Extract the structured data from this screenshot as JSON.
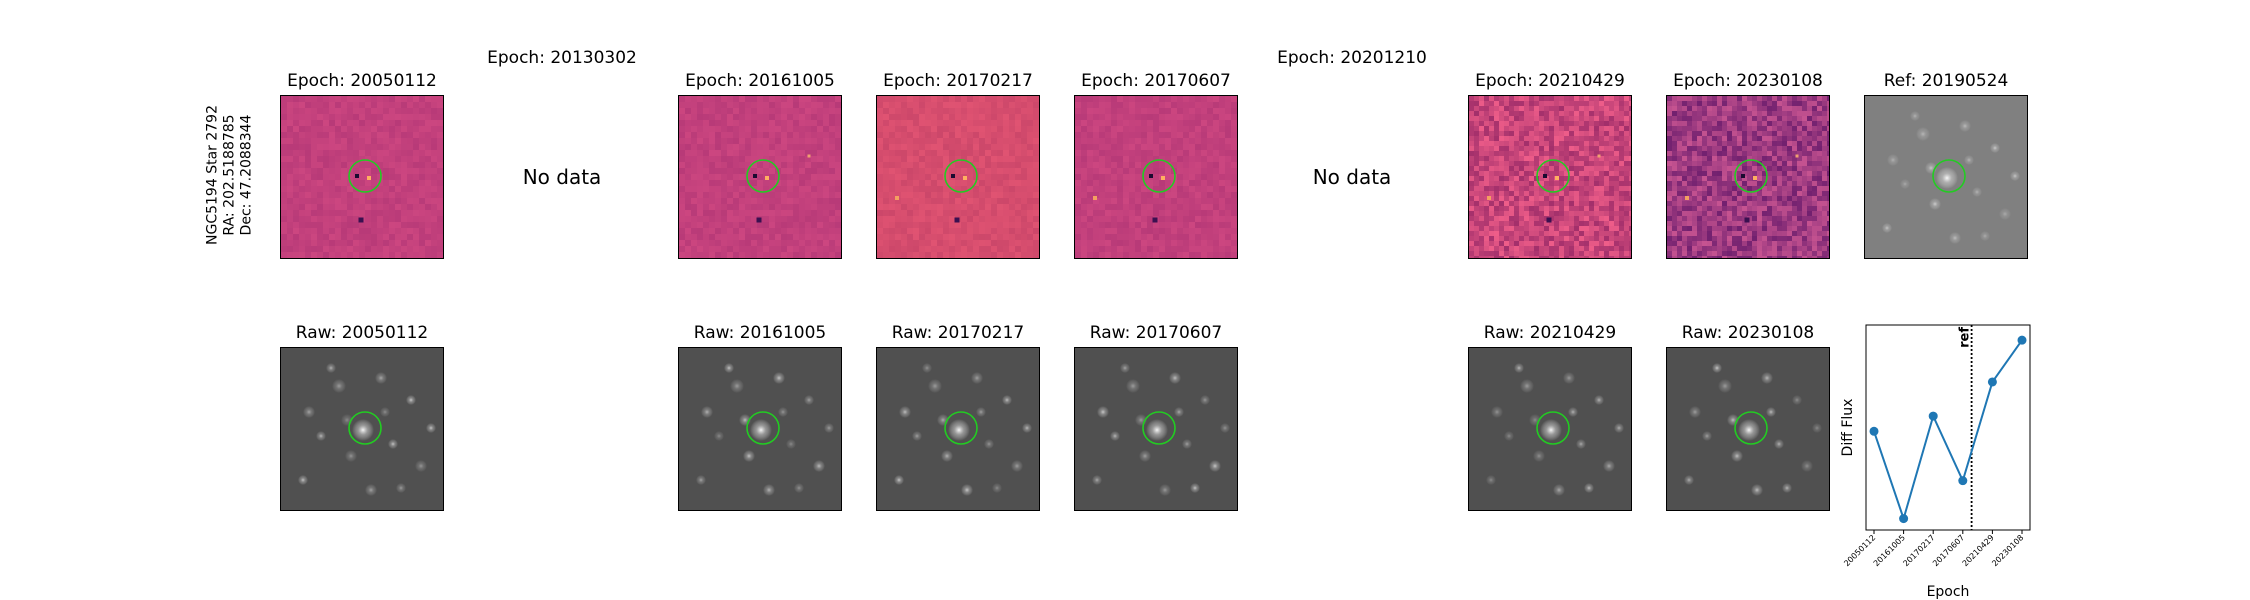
{
  "side_label": {
    "line1": "NGC5194 Star 2792",
    "line2": "RA: 202.5188785",
    "line3": "Dec: 47.2088344"
  },
  "diff_row": [
    {
      "title": "Epoch: 20050112",
      "has_data": true,
      "style": "diff-smooth"
    },
    {
      "title": "Epoch: 20130302",
      "has_data": false,
      "no_data": "No data"
    },
    {
      "title": "Epoch: 20161005",
      "has_data": true,
      "style": "diff-smooth"
    },
    {
      "title": "Epoch: 20170217",
      "has_data": true,
      "style": "diff-smooth"
    },
    {
      "title": "Epoch: 20170607",
      "has_data": true,
      "style": "diff-smooth"
    },
    {
      "title": "Epoch: 20201210",
      "has_data": false,
      "no_data": "No data"
    },
    {
      "title": "Epoch: 20210429",
      "has_data": true,
      "style": "diff-noisy"
    },
    {
      "title": "Epoch: 20230108",
      "has_data": true,
      "style": "diff-noisy-dark"
    },
    {
      "title": "Ref: 20190524",
      "has_data": true,
      "style": "ref"
    }
  ],
  "raw_row": [
    {
      "title": "Raw: 20050112",
      "col": 0
    },
    {
      "title": "Raw: 20161005",
      "col": 2
    },
    {
      "title": "Raw: 20170217",
      "col": 3
    },
    {
      "title": "Raw: 20170607",
      "col": 4
    },
    {
      "title": "Raw: 20210429",
      "col": 6
    },
    {
      "title": "Raw: 20230108",
      "col": 7
    }
  ],
  "colors": {
    "diff_base": "#c2407c",
    "diff_base2": "#d64d6e",
    "noisy_base": "#c8467a",
    "noisy_dark_base": "#9c3a80",
    "ref_base": "#808080",
    "raw_base": "#505050",
    "circle": "#22cc22",
    "line": "#1f77b4"
  },
  "chart_data": {
    "type": "line",
    "xlabel": "Epoch",
    "ylabel": "Diff Flux",
    "categories": [
      "20050112",
      "20161005",
      "20170217",
      "20170607",
      "20210429",
      "20230108"
    ],
    "values": [
      0.52,
      0.06,
      0.6,
      0.26,
      0.78,
      1.0
    ],
    "ylim": [
      0,
      1.08
    ],
    "ref_marker": {
      "label": "ref",
      "position_between": [
        3,
        4
      ]
    },
    "grid": false,
    "legend": "none"
  }
}
